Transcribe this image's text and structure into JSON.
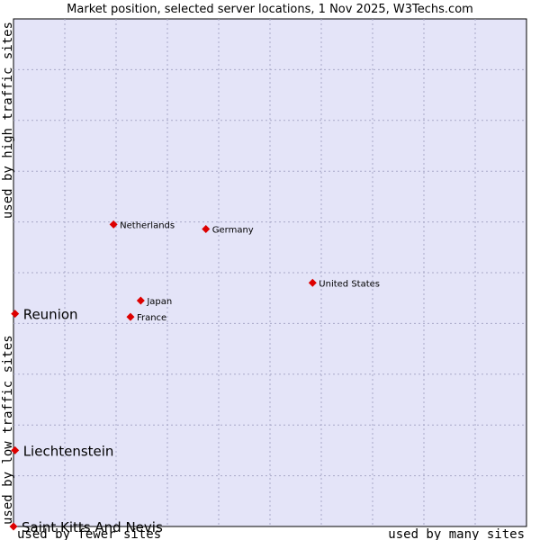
{
  "chart_data": {
    "type": "scatter",
    "title": "Market position, selected server locations, 1 Nov 2025, W3Techs.com",
    "xlabel_left": "used by fewer sites",
    "xlabel_right": "used by many sites",
    "ylabel_top": "used by high traffic sites",
    "ylabel_bottom": "used by low traffic sites",
    "xlim": [
      0,
      10
    ],
    "ylim": [
      0,
      10
    ],
    "grid": true,
    "colors": {
      "plot_bg": "#e4e4f8",
      "point": "#dd0000",
      "grid": "#a8a8c8",
      "text": "#000000"
    },
    "points": [
      {
        "label": "Netherlands",
        "x": 1.95,
        "y": 5.95,
        "highlight": false
      },
      {
        "label": "Germany",
        "x": 3.75,
        "y": 5.86,
        "highlight": false
      },
      {
        "label": "United States",
        "x": 5.83,
        "y": 4.8,
        "highlight": false
      },
      {
        "label": "Japan",
        "x": 2.48,
        "y": 4.45,
        "highlight": false
      },
      {
        "label": "France",
        "x": 2.28,
        "y": 4.13,
        "highlight": false
      },
      {
        "label": "Reunion",
        "x": 0.03,
        "y": 4.19,
        "highlight": true
      },
      {
        "label": "Liechtenstein",
        "x": 0.03,
        "y": 1.5,
        "highlight": true
      },
      {
        "label": "Saint Kitts And Nevis",
        "x": 0.0,
        "y": 0.0,
        "highlight": true
      }
    ]
  }
}
